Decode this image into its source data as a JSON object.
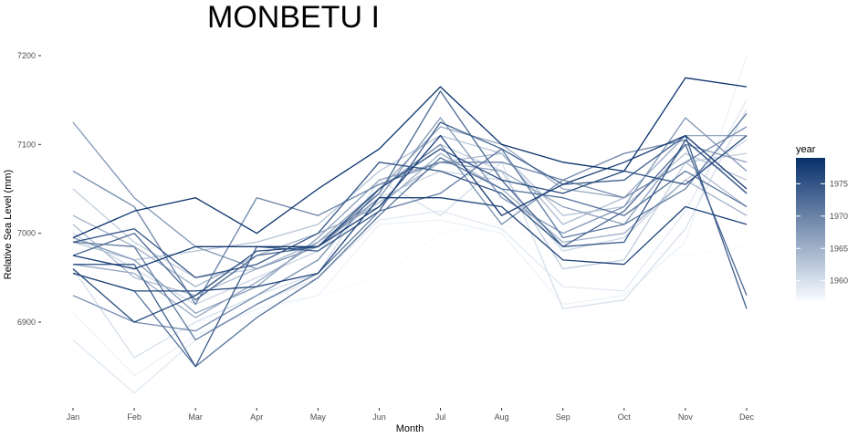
{
  "chart_data": {
    "type": "line",
    "title": "MONBETU I",
    "xlabel": "Month",
    "ylabel": "Relative Sea Level (mm)",
    "categories": [
      "Jan",
      "Feb",
      "Mar",
      "Apr",
      "May",
      "Jun",
      "Jul",
      "Aug",
      "Sep",
      "Oct",
      "Nov",
      "Dec"
    ],
    "yticks": [
      6900,
      7000,
      7100,
      7200
    ],
    "ylim": [
      6812,
      7210
    ],
    "grid": false,
    "legend": {
      "title": "year",
      "position": "right",
      "type": "continuous",
      "range": [
        1957,
        1979
      ],
      "ticks": [
        1960,
        1965,
        1970,
        1975
      ],
      "low_color": "#f7fbff",
      "high_color": "#08306b"
    },
    "series": [
      {
        "year": 1957,
        "values": [
          6930,
          6905,
          6900,
          6910,
          6930,
          6950,
          7000,
          7010,
          6985,
          6980,
          6975,
          6985
        ]
      },
      {
        "year": 1958,
        "values": [
          6910,
          6840,
          6885,
          6915,
          6930,
          7010,
          7015,
          7000,
          6920,
          6930,
          6990,
          7200
        ]
      },
      {
        "year": 1959,
        "values": [
          6880,
          6820,
          6880,
          6920,
          6950,
          7015,
          7025,
          7005,
          6940,
          6935,
          7025,
          7150
        ]
      },
      {
        "year": 1960,
        "values": [
          6960,
          6860,
          6900,
          6930,
          6955,
          7060,
          7020,
          7080,
          6915,
          6925,
          7005,
          7140
        ]
      },
      {
        "year": 1961,
        "values": [
          7000,
          6960,
          6920,
          6950,
          6980,
          7040,
          7070,
          7060,
          6980,
          6995,
          7060,
          7105
        ]
      },
      {
        "year": 1962,
        "values": [
          7050,
          6990,
          6950,
          6960,
          6990,
          7050,
          7100,
          7070,
          6960,
          6970,
          7080,
          7090
        ]
      },
      {
        "year": 1963,
        "values": [
          6990,
          6970,
          6980,
          6990,
          7010,
          7070,
          7110,
          7090,
          7020,
          7030,
          7090,
          7060
        ]
      },
      {
        "year": 1964,
        "values": [
          7010,
          6950,
          6930,
          6960,
          6990,
          7035,
          7080,
          7090,
          7010,
          7040,
          7080,
          7030
        ]
      },
      {
        "year": 1965,
        "values": [
          7020,
          6985,
          6940,
          6975,
          7000,
          7030,
          7090,
          7050,
          6990,
          7000,
          7060,
          7020
        ]
      },
      {
        "year": 1966,
        "values": [
          6965,
          6955,
          6905,
          6945,
          6990,
          7050,
          7120,
          7100,
          7050,
          7040,
          7110,
          7110
        ]
      },
      {
        "year": 1967,
        "values": [
          6995,
          6970,
          6910,
          6940,
          6995,
          7060,
          7080,
          7070,
          7030,
          7010,
          7100,
          7080
        ]
      },
      {
        "year": 1968,
        "values": [
          7125,
          7040,
          6985,
          6960,
          6985,
          7040,
          7130,
          7040,
          7000,
          7030,
          7130,
          7070
        ]
      },
      {
        "year": 1969,
        "values": [
          6930,
          6900,
          6890,
          6930,
          6970,
          7050,
          7100,
          7010,
          7060,
          7040,
          7080,
          7120
        ]
      },
      {
        "year": 1970,
        "values": [
          7070,
          7030,
          6920,
          7040,
          7020,
          7055,
          7080,
          7080,
          7060,
          7090,
          7105,
          7045
        ]
      },
      {
        "year": 1971,
        "values": [
          6990,
          6985,
          6880,
          6920,
          6955,
          7025,
          7045,
          7095,
          6995,
          7010,
          7050,
          7135
        ]
      },
      {
        "year": 1972,
        "values": [
          6955,
          6935,
          6850,
          6905,
          6950,
          7020,
          7085,
          7050,
          7040,
          7020,
          7070,
          7030
        ]
      },
      {
        "year": 1973,
        "values": [
          6975,
          7000,
          6925,
          6975,
          6985,
          7045,
          7160,
          7060,
          6985,
          7025,
          7100,
          6930
        ]
      },
      {
        "year": 1974,
        "values": [
          6965,
          6965,
          6850,
          6985,
          6980,
          7025,
          7125,
          7095,
          7055,
          7060,
          7110,
          6915
        ]
      },
      {
        "year": 1975,
        "values": [
          6990,
          7005,
          6950,
          6965,
          7000,
          7080,
          7070,
          7045,
          6985,
          6990,
          7105,
          7045
        ]
      },
      {
        "year": 1976,
        "values": [
          6960,
          6900,
          6930,
          6980,
          6985,
          7050,
          7095,
          7060,
          7045,
          7070,
          7055,
          7110
        ]
      },
      {
        "year": 1977,
        "values": [
          6955,
          6935,
          6935,
          6940,
          6955,
          7040,
          7040,
          7030,
          6970,
          6965,
          7030,
          7010
        ]
      },
      {
        "year": 1978,
        "values": [
          6975,
          6960,
          6985,
          6985,
          6985,
          7030,
          7110,
          7020,
          7055,
          7080,
          7110,
          7050
        ]
      },
      {
        "year": 1979,
        "values": [
          6995,
          7025,
          7040,
          7000,
          7050,
          7095,
          7165,
          7100,
          7080,
          7070,
          7175,
          7165
        ]
      }
    ]
  }
}
